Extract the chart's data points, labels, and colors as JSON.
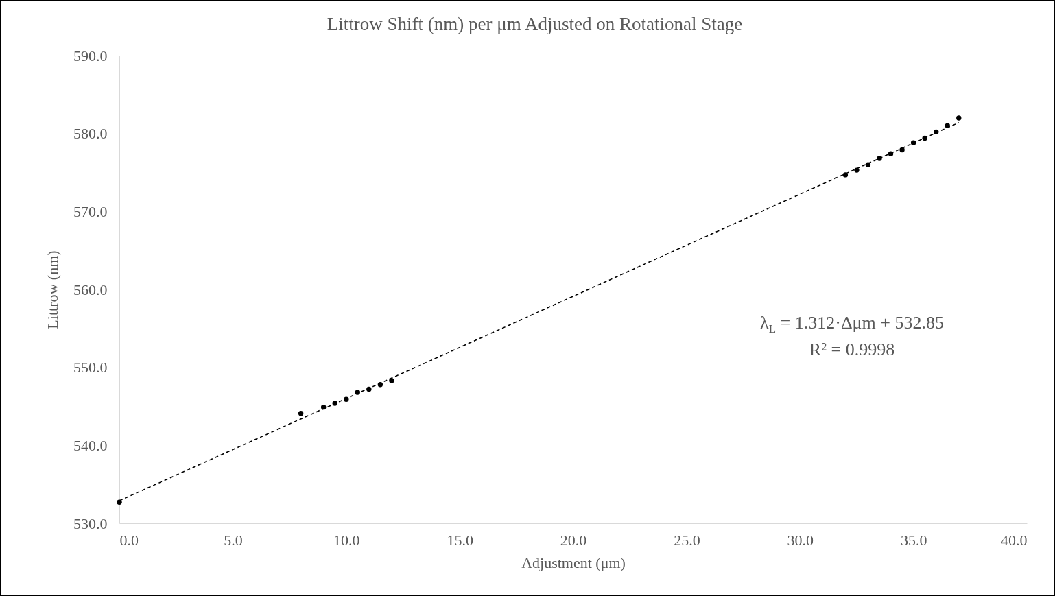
{
  "chart_data": {
    "type": "scatter",
    "title": "Littrow Shift (nm) per μm Adjusted on Rotational Stage",
    "xlabel": "Adjustment (μm)",
    "ylabel": "Littrow (nm)",
    "series": [
      {
        "color": "#000000",
        "marker": "circle",
        "x": [
          0,
          8,
          9,
          9.5,
          10,
          10.5,
          11,
          11.5,
          12,
          32,
          32.5,
          33,
          33.5,
          34,
          34.5,
          35,
          35.5,
          36,
          36.5,
          37
        ],
        "values": [
          532.7,
          544.1,
          544.9,
          545.4,
          545.9,
          546.8,
          547.2,
          547.8,
          548.3,
          574.7,
          575.3,
          576.0,
          576.8,
          577.4,
          577.9,
          578.8,
          579.4,
          580.2,
          581.0,
          582.0
        ]
      },
      {
        "type": "line",
        "color": "#000000",
        "line_style": "dashed",
        "marker": "none",
        "x": [
          0,
          37
        ],
        "values": [
          532.9,
          581.4
        ]
      }
    ],
    "xlim": [
      0,
      40
    ],
    "ylim": [
      530,
      590
    ],
    "xticks": [
      {
        "value": 0,
        "label": "0.0"
      },
      {
        "value": 5,
        "label": "5.0"
      },
      {
        "value": 10,
        "label": "10.0"
      },
      {
        "value": 15,
        "label": "15.0"
      },
      {
        "value": 20,
        "label": "20.0"
      },
      {
        "value": 25,
        "label": "25.0"
      },
      {
        "value": 30,
        "label": "30.0"
      },
      {
        "value": 35,
        "label": "35.0"
      },
      {
        "value": 40,
        "label": "40.0"
      }
    ],
    "yticks": [
      {
        "value": 530,
        "label": "530.0"
      },
      {
        "value": 540,
        "label": "540.0"
      },
      {
        "value": 550,
        "label": "550.0"
      },
      {
        "value": 560,
        "label": "560.0"
      },
      {
        "value": 570,
        "label": "570.0"
      },
      {
        "value": 580,
        "label": "580.0"
      },
      {
        "value": 590,
        "label": "590.0"
      }
    ],
    "annotations": [
      "λ$_{L}$ = 1.312·Δμm + 532.85",
      "R² = 0.9998"
    ],
    "grid": false
  }
}
